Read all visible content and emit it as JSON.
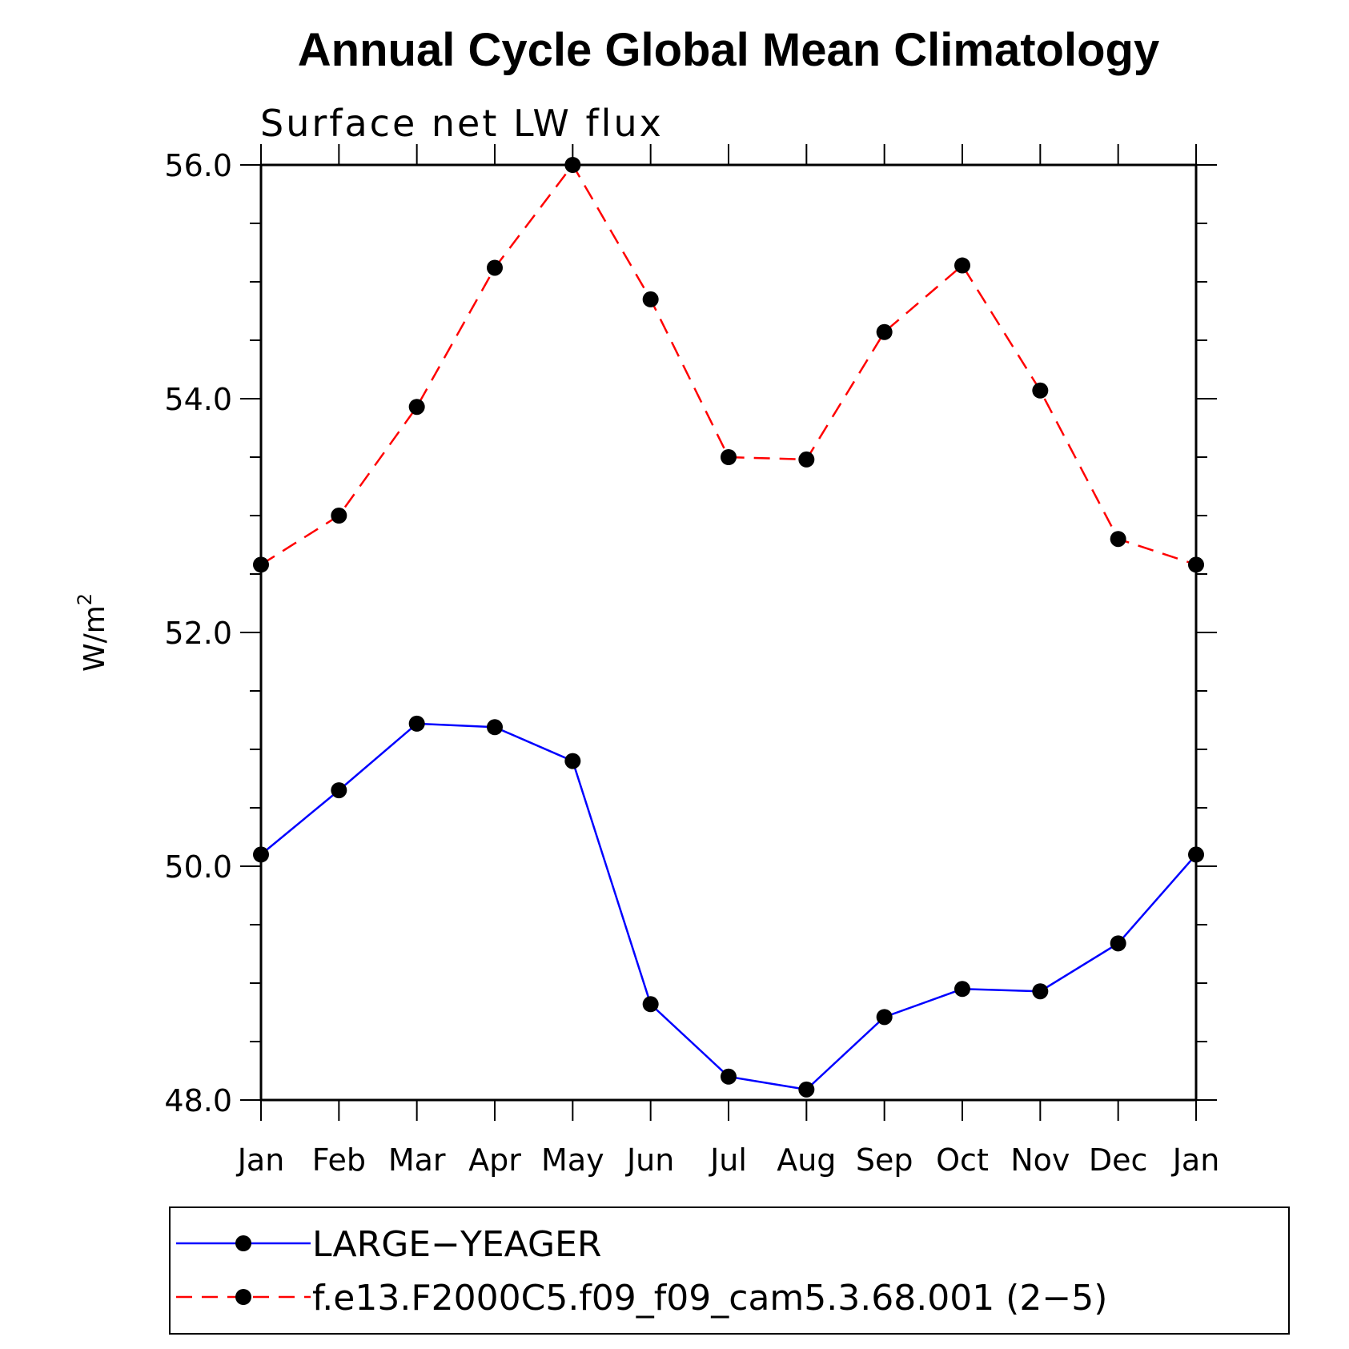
{
  "chart_data": {
    "type": "line",
    "title": "Annual Cycle Global Mean Climatology",
    "subtitle": "Surface net LW flux",
    "ylabel": "W/m",
    "ylabel_sup": "2",
    "ylim": [
      48.0,
      56.0
    ],
    "yticks": [
      "48.0",
      "50.0",
      "52.0",
      "54.0",
      "56.0"
    ],
    "ytick_values": [
      48,
      50,
      52,
      54,
      56
    ],
    "categories": [
      "Jan",
      "Feb",
      "Mar",
      "Apr",
      "May",
      "Jun",
      "Jul",
      "Aug",
      "Sep",
      "Oct",
      "Nov",
      "Dec",
      "Jan"
    ],
    "series": [
      {
        "name": "LARGE−YEAGER",
        "color": "#0000ff",
        "dash": "solid",
        "values": [
          50.1,
          50.65,
          51.22,
          51.19,
          50.9,
          48.82,
          48.2,
          48.09,
          48.71,
          48.95,
          48.93,
          49.34,
          50.1
        ]
      },
      {
        "name": "f.e13.F2000C5.f09_f09_cam5.3.68.001 (2−5)",
        "color": "#ff0000",
        "dash": "dashed",
        "values": [
          52.58,
          53.0,
          53.93,
          55.12,
          56.0,
          54.85,
          53.5,
          53.48,
          54.57,
          55.14,
          54.07,
          52.8,
          52.58
        ]
      }
    ],
    "grid": false,
    "legend_position": "bottom"
  }
}
